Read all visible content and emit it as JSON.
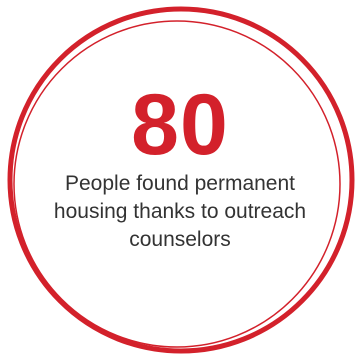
{
  "stat": {
    "number": "80",
    "caption": "People found permanent housing thanks to outreach counselors"
  },
  "colors": {
    "accent": "#d3212b",
    "text": "#333333",
    "background": "#ffffff"
  }
}
